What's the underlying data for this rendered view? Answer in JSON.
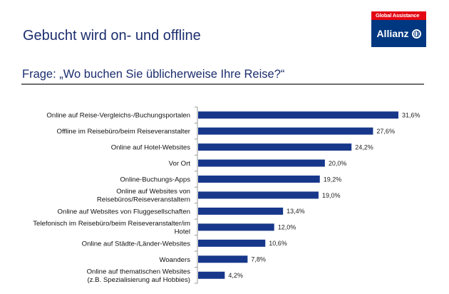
{
  "header": {
    "title": "Gebucht wird on- und offline",
    "subtitle": "Frage: „Wo buchen Sie üblicherweise Ihre Reise?“"
  },
  "logo": {
    "tagline": "Global Assistance",
    "brand": "Allianz",
    "icon": "allianz-eagle-mark-icon",
    "colors": {
      "tagline_bg": "#e30613",
      "brand_bg": "#003781"
    }
  },
  "colors": {
    "bar": "#17378a",
    "text_heading": "#1c2e6e"
  },
  "chart_data": {
    "type": "bar",
    "orientation": "horizontal",
    "title": "Frage: „Wo buchen Sie üblicherweise Ihre Reise?“",
    "xlabel": "",
    "ylabel": "",
    "unit": "%",
    "xlim": [
      0,
      31.6
    ],
    "grid": false,
    "legend": "none",
    "categories": [
      [
        "Online auf Reise-Vergleichs-/Buchungsportalen"
      ],
      [
        "Offline im Reisebüro/beim Reiseveranstalter"
      ],
      [
        "Online auf Hotel-Websites"
      ],
      [
        "Vor Ort"
      ],
      [
        "Online-Buchungs-Apps"
      ],
      [
        "Online auf Websites von",
        "Reisebüros/Reiseveranstaltern"
      ],
      [
        "Online auf Websites von Fluggesellschaften"
      ],
      [
        "Telefonisch im Reisebüro/beim Reiseveranstalter/im",
        "Hotel"
      ],
      [
        "Online auf Städte-/Länder-Websites"
      ],
      [
        "Woanders"
      ],
      [
        "Online auf thematischen Websites",
        "(z.B. Spezialisierung auf Hobbies)"
      ]
    ],
    "values": [
      31.6,
      27.6,
      24.2,
      20.0,
      19.2,
      19.0,
      13.4,
      12.0,
      10.6,
      7.8,
      4.2
    ],
    "value_labels": [
      "31,6%",
      "27,6%",
      "24,2%",
      "20,0%",
      "19,2%",
      "19,0%",
      "13,4%",
      "12,0%",
      "10,6%",
      "7,8%",
      "4,2%"
    ]
  }
}
